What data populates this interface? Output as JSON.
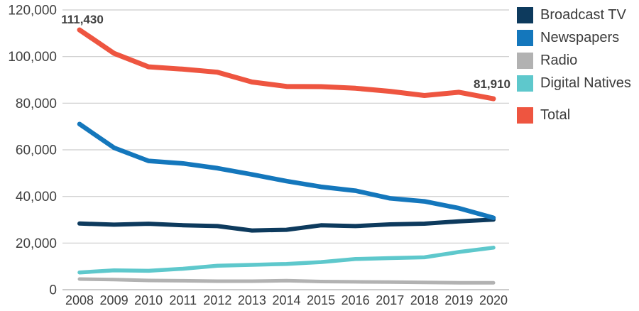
{
  "chart_data": {
    "type": "line",
    "title": "",
    "xlabel": "",
    "ylabel": "",
    "x": [
      "2008",
      "2009",
      "2010",
      "2011",
      "2012",
      "2013",
      "2014",
      "2015",
      "2016",
      "2017",
      "2018",
      "2019",
      "2020"
    ],
    "ylim": [
      0,
      120000
    ],
    "ytick_labels": [
      "0",
      "20,000",
      "40,000",
      "60,000",
      "80,000",
      "100,000",
      "120,000"
    ],
    "grid": "horizontal",
    "legend_position": "right",
    "series": [
      {
        "name": "Broadcast TV",
        "color": "#0d3a5d",
        "values": [
          28390,
          27900,
          28300,
          27650,
          27300,
          25400,
          25700,
          27630,
          27290,
          28020,
          28340,
          29340,
          30100
        ]
      },
      {
        "name": "Newspapers",
        "color": "#1477bc",
        "values": [
          71070,
          60880,
          55260,
          54140,
          52110,
          49420,
          46560,
          44120,
          42450,
          39210,
          37900,
          34950,
          30820
        ]
      },
      {
        "name": "Radio",
        "color": "#b2b2b2",
        "values": [
          4570,
          4340,
          3960,
          3840,
          3650,
          3660,
          3860,
          3500,
          3390,
          3270,
          3130,
          2990,
          2960
        ]
      },
      {
        "name": "Digital Natives",
        "color": "#5ec8cc",
        "values": [
          7400,
          8300,
          8090,
          8980,
          10280,
          10650,
          11060,
          11850,
          13170,
          13560,
          13890,
          16160,
          18030
        ]
      },
      {
        "name": "Total",
        "color": "#ee5540",
        "values": [
          111430,
          101400,
          95600,
          94600,
          93300,
          89100,
          87200,
          87100,
          86400,
          85100,
          83300,
          84700,
          81910
        ]
      }
    ],
    "annotations": [
      {
        "text": "111,430",
        "year": "2008",
        "value": 111430,
        "series": "Total"
      },
      {
        "text": "81,910",
        "year": "2020",
        "value": 81910,
        "series": "Total"
      }
    ]
  },
  "legend": {
    "items": [
      "Broadcast TV",
      "Newspapers",
      "Radio",
      "Digital Natives",
      "Total"
    ]
  },
  "colors": {
    "background": "#ffffff",
    "axis_text": "#404040",
    "gridline": "#cccccc",
    "baseline": "#bcbcbc",
    "annotation_text": "#404040",
    "legend_text": "#3b3b3b"
  }
}
